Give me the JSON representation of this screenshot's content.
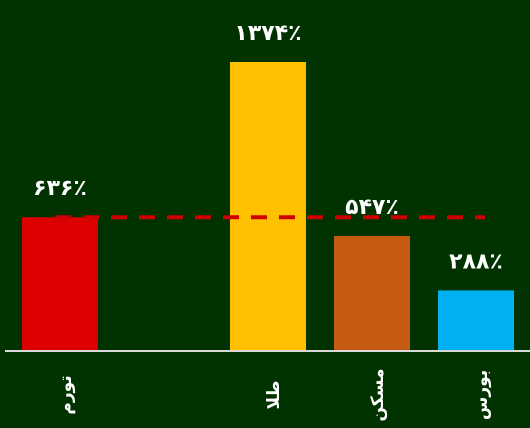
{
  "colors": {
    "background": "#003300",
    "axis": "#d9d9d9",
    "reference_line": "#cc0000",
    "text": "#ffffff"
  },
  "chart_data": {
    "type": "bar",
    "categories": [
      "تورم",
      "",
      "طلا",
      "مسکن",
      "بورس"
    ],
    "values": [
      636,
      null,
      1374,
      547,
      288
    ],
    "value_labels": [
      "۶۳۶٪",
      "",
      "۱۳۷۴٪",
      "۵۴۷٪",
      "۲۸۸٪"
    ],
    "bar_colors": [
      "#dd0000",
      "",
      "#ffc000",
      "#c55a11",
      "#00b0f0"
    ],
    "ylim": [
      0,
      1400
    ],
    "reference_line": {
      "value": 636,
      "style": "dashed"
    },
    "title": "",
    "xlabel": "",
    "ylabel": "",
    "grid": false,
    "legend": "none"
  }
}
